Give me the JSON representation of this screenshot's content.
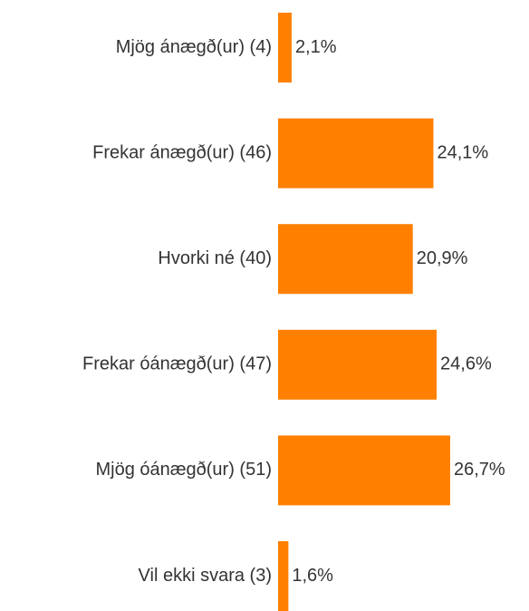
{
  "chart_data": {
    "type": "bar",
    "orientation": "horizontal",
    "categories": [
      "Mjög ánægð(ur) (4)",
      "Frekar ánægð(ur) (46)",
      "Hvorki né (40)",
      "Frekar óánægð(ur) (47)",
      "Mjög óánægð(ur) (51)",
      "Vil ekki svara (3)"
    ],
    "values": [
      2.1,
      24.1,
      20.9,
      24.6,
      26.7,
      1.6
    ],
    "value_labels": [
      "2,1%",
      "24,1%",
      "20,9%",
      "24,6%",
      "26,7%",
      "1,6%"
    ],
    "color": "#ff8000"
  }
}
